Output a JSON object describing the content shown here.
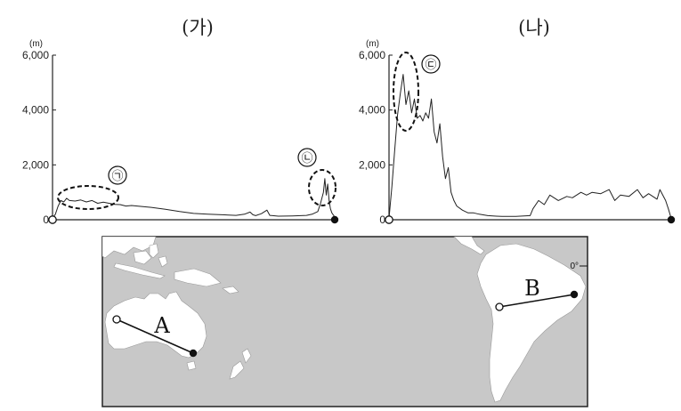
{
  "chart_data": [
    {
      "type": "line",
      "title": "(가)",
      "y_unit": "(m)",
      "ylim": [
        0,
        6000
      ],
      "y_ticks": [
        "0",
        "2,000",
        "4,000",
        "6,000"
      ],
      "grid": false,
      "x_extent": [
        0,
        100
      ],
      "start_marker": "open-circle",
      "end_marker": "filled-circle",
      "series": [
        {
          "x": [
            0,
            1,
            2,
            3,
            4,
            5,
            6,
            8,
            10,
            12,
            14,
            16,
            18,
            20,
            22,
            24,
            26,
            28,
            30,
            35,
            40,
            45,
            50,
            55,
            60,
            65,
            68,
            70,
            71,
            72,
            74,
            76,
            77,
            78,
            80,
            85,
            90,
            92,
            94,
            95,
            96,
            96.5,
            97,
            97.5,
            98,
            98.5,
            99,
            100
          ],
          "y": [
            50,
            200,
            500,
            700,
            650,
            780,
            700,
            680,
            720,
            650,
            700,
            600,
            640,
            600,
            560,
            550,
            500,
            520,
            500,
            450,
            380,
            300,
            230,
            200,
            180,
            160,
            200,
            280,
            180,
            150,
            220,
            350,
            160,
            150,
            130,
            140,
            160,
            200,
            300,
            600,
            1000,
            1500,
            900,
            1300,
            700,
            400,
            250,
            100
          ]
        }
      ],
      "annotations": [
        "㉠",
        "㉡"
      ]
    },
    {
      "type": "line",
      "title": "(나)",
      "y_unit": "(m)",
      "ylim": [
        0,
        6000
      ],
      "y_ticks": [
        "0",
        "2,000",
        "4,000",
        "6,000"
      ],
      "grid": false,
      "x_extent": [
        0,
        100
      ],
      "start_marker": "open-circle",
      "end_marker": "filled-circle",
      "series": [
        {
          "x": [
            0,
            1,
            2,
            3,
            4,
            5,
            6,
            7,
            8,
            9,
            10,
            11,
            12,
            13,
            14,
            15,
            16,
            17,
            18,
            19,
            20,
            21,
            22,
            23,
            24,
            26,
            28,
            30,
            32,
            35,
            38,
            40,
            45,
            50,
            51,
            53,
            55,
            57,
            60,
            63,
            65,
            68,
            70,
            72,
            75,
            78,
            80,
            82,
            85,
            88,
            90,
            92,
            95,
            96,
            98,
            99,
            100
          ],
          "y": [
            50,
            1200,
            2500,
            3800,
            4600,
            5300,
            4200,
            4700,
            3900,
            4400,
            3700,
            3800,
            3600,
            3900,
            3700,
            4400,
            3200,
            2800,
            3500,
            2300,
            1500,
            1900,
            1000,
            700,
            500,
            350,
            250,
            250,
            200,
            150,
            130,
            120,
            120,
            150,
            400,
            700,
            550,
            900,
            700,
            850,
            800,
            1000,
            900,
            1000,
            950,
            1100,
            700,
            900,
            850,
            1100,
            800,
            950,
            750,
            1100,
            700,
            400,
            50
          ]
        }
      ],
      "annotations": [
        "㉢"
      ]
    }
  ],
  "map": {
    "equator_label": "0°",
    "routes": [
      {
        "label": "A",
        "start": "open-circle",
        "end": "filled-circle"
      },
      {
        "label": "B",
        "start": "open-circle",
        "end": "filled-circle"
      }
    ],
    "colors": {
      "ocean": "#c8c8c8",
      "land": "#ffffff",
      "border": "#222222"
    }
  }
}
